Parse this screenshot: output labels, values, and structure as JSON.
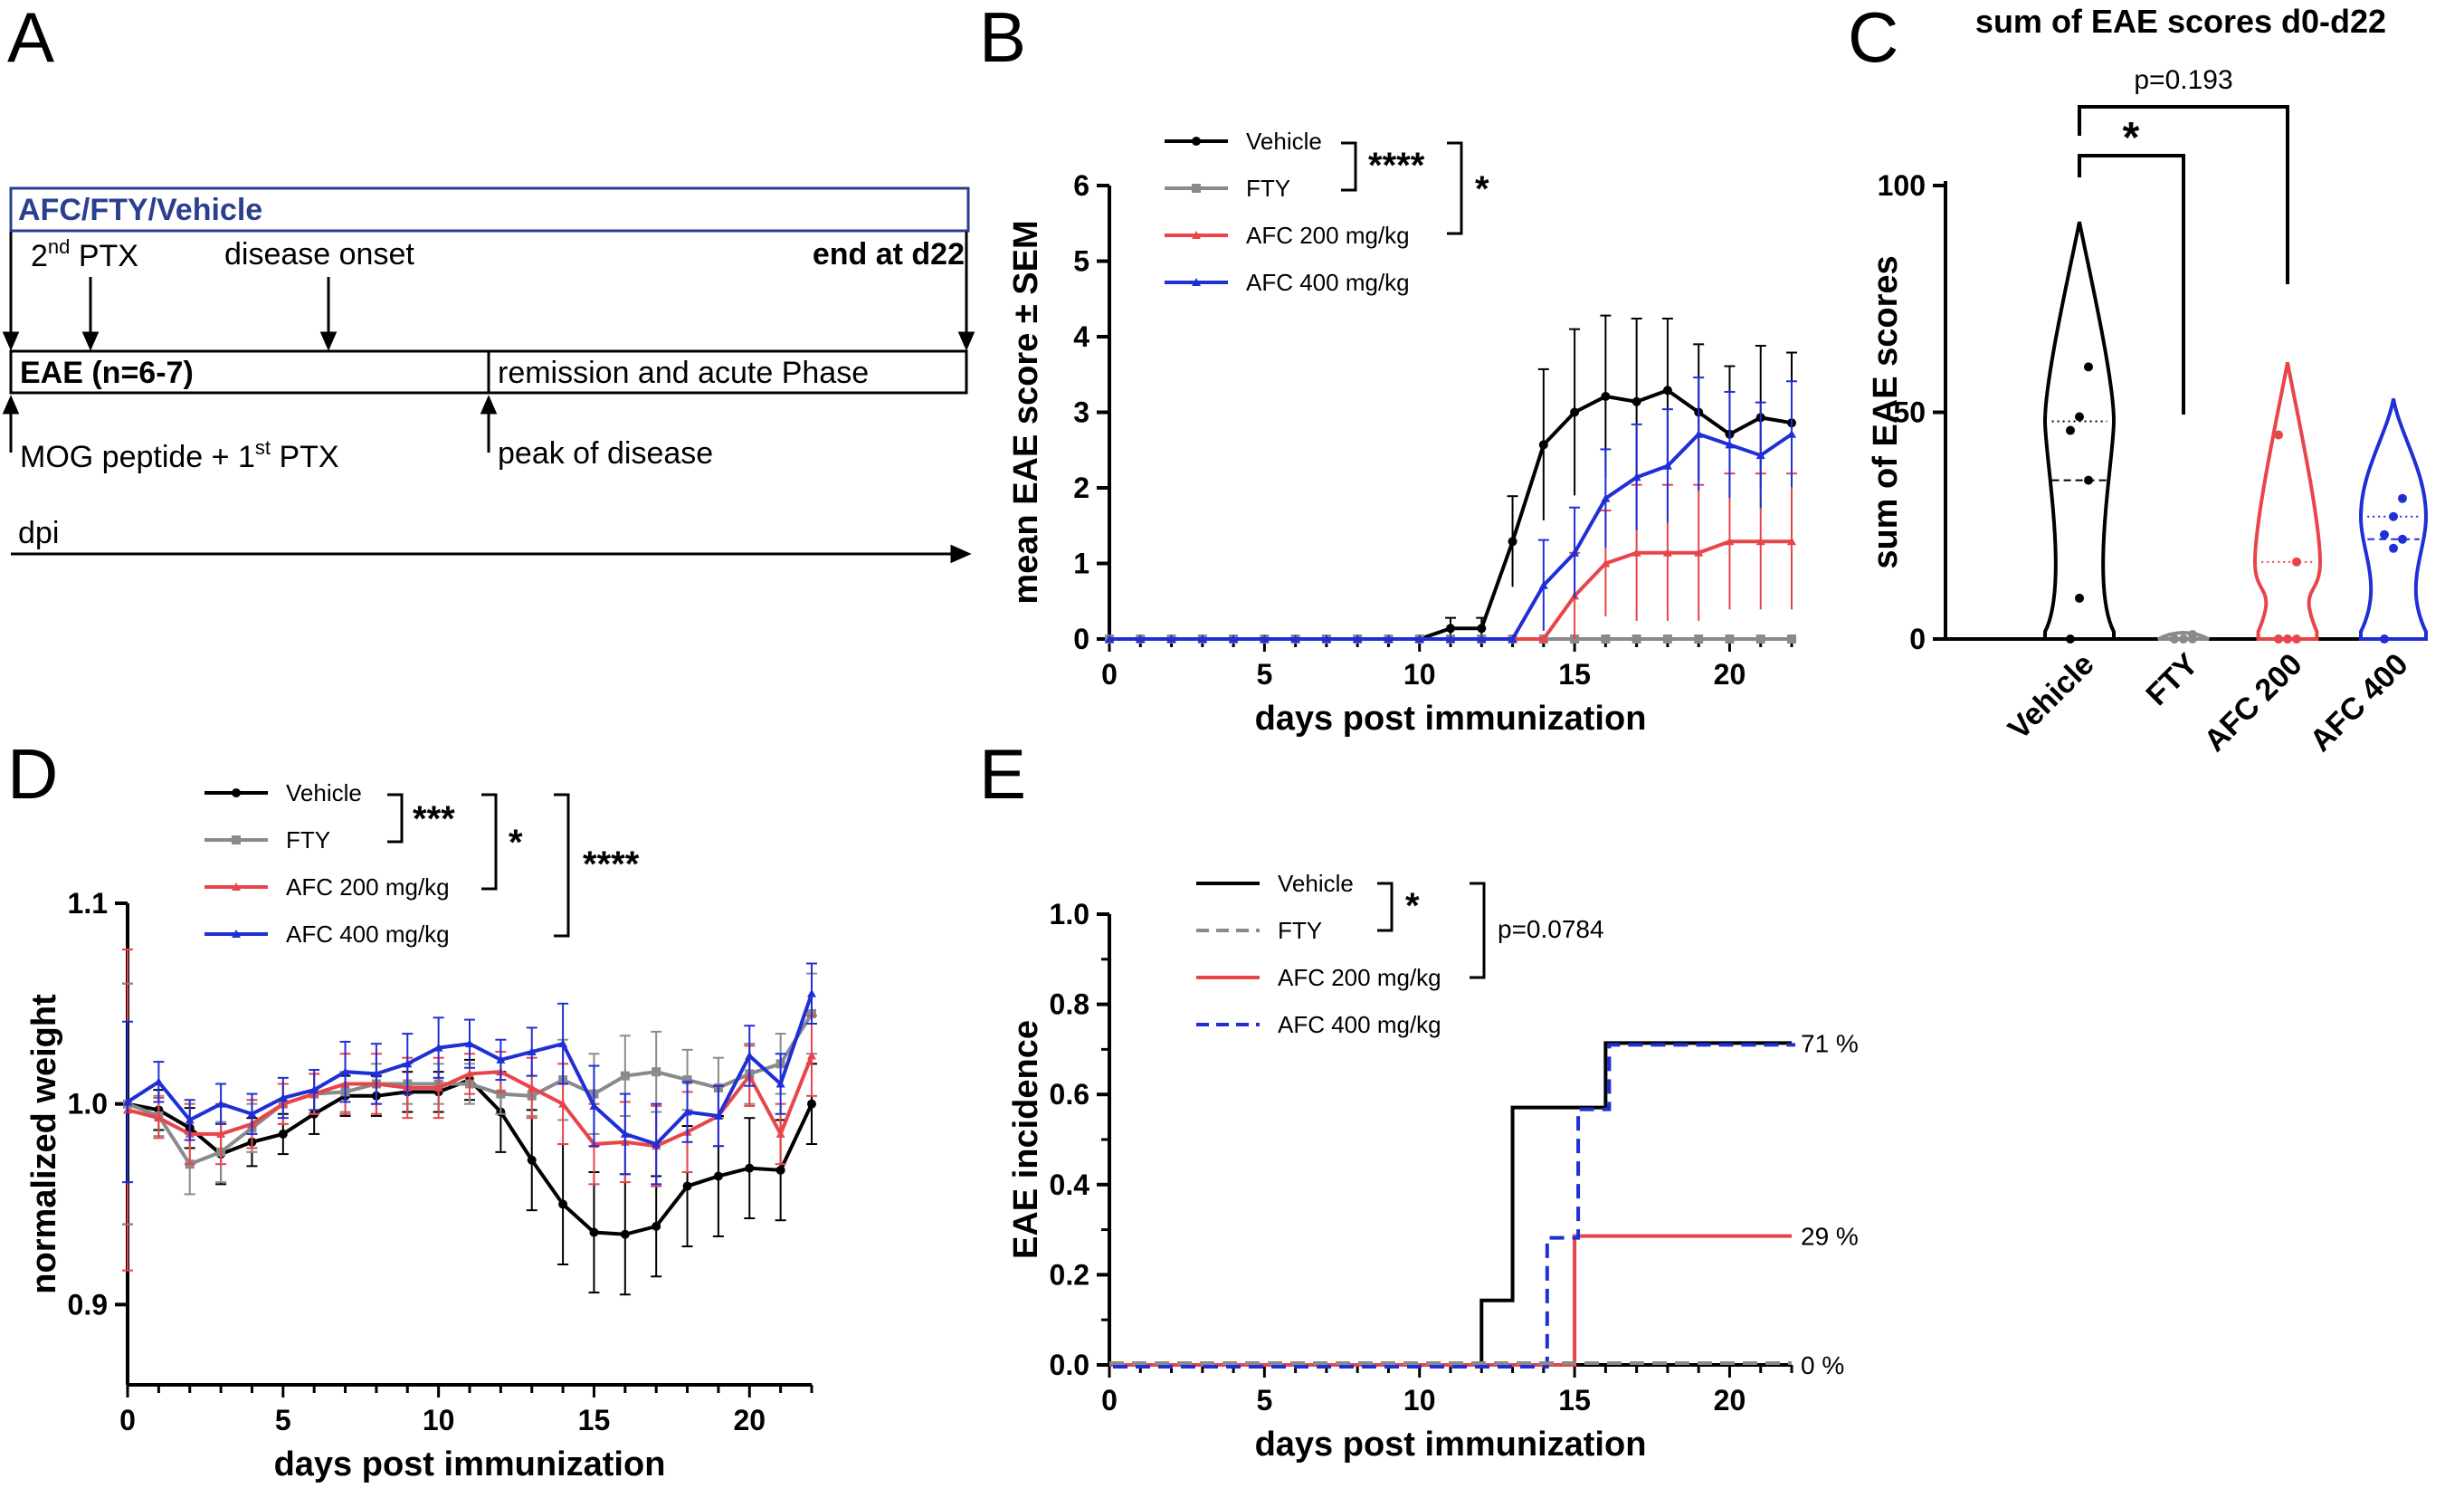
{
  "figure": {
    "panels": [
      "A",
      "B",
      "C",
      "D",
      "E"
    ]
  },
  "timeline": {
    "treatment_bar": "AFC/FTY/Vehicle",
    "treatment_color": "#2a3f8f",
    "ptx2_base": "2",
    "ptx2_sup": "nd",
    "ptx2_rest": " PTX",
    "onset": "disease onset",
    "end": "end at d22",
    "eae_box": "EAE (n=6-7)",
    "remission_box": "remission and acute Phase",
    "mog_text": "MOG peptide + 1",
    "mog_sup": "st",
    "mog_rest": " PTX",
    "peak": "peak of disease",
    "dpi": "dpi"
  },
  "colors": {
    "Vehicle": "#000000",
    "FTY": "#8a8a8a",
    "AFC 200 mg/kg": "#e8454a",
    "AFC 400 mg/kg": "#1f2fd6"
  },
  "chart_data": [
    {
      "panel": "B",
      "type": "line",
      "title": "",
      "xlabel": "days post immunization",
      "ylabel": "mean EAE score ± SEM",
      "xlim": [
        0,
        22
      ],
      "ylim": [
        0,
        6
      ],
      "xticks": [
        0,
        5,
        10,
        15,
        20
      ],
      "yticks": [
        0,
        1,
        2,
        3,
        4,
        5,
        6
      ],
      "x": [
        0,
        1,
        2,
        3,
        4,
        5,
        6,
        7,
        8,
        9,
        10,
        11,
        12,
        13,
        14,
        15,
        16,
        17,
        18,
        19,
        20,
        21,
        22
      ],
      "series": [
        {
          "name": "Vehicle",
          "color": "#000000",
          "values": [
            0,
            0,
            0,
            0,
            0,
            0,
            0,
            0,
            0,
            0,
            0,
            0.14,
            0.14,
            1.29,
            2.57,
            3.0,
            3.21,
            3.14,
            3.29,
            3.0,
            2.71,
            2.93,
            2.86
          ],
          "sem": [
            0,
            0,
            0,
            0,
            0,
            0,
            0,
            0,
            0,
            0,
            0,
            0.14,
            0.14,
            0.6,
            1.0,
            1.1,
            1.07,
            1.1,
            0.95,
            0.9,
            0.9,
            0.95,
            0.93
          ]
        },
        {
          "name": "FTY",
          "color": "#8a8a8a",
          "values": [
            0,
            0,
            0,
            0,
            0,
            0,
            0,
            0,
            0,
            0,
            0,
            0,
            0,
            0,
            0,
            0,
            0,
            0,
            0,
            0,
            0,
            0,
            0
          ],
          "sem": [
            0,
            0,
            0,
            0,
            0,
            0,
            0,
            0,
            0,
            0,
            0,
            0,
            0,
            0,
            0,
            0,
            0,
            0,
            0,
            0,
            0,
            0,
            0
          ]
        },
        {
          "name": "AFC 200 mg/kg",
          "color": "#e8454a",
          "values": [
            0,
            0,
            0,
            0,
            0,
            0,
            0,
            0,
            0,
            0,
            0,
            0,
            0,
            0,
            0,
            0.57,
            1.0,
            1.14,
            1.14,
            1.14,
            1.29,
            1.29,
            1.29
          ],
          "sem": [
            0,
            0,
            0,
            0,
            0,
            0,
            0,
            0,
            0,
            0,
            0,
            0,
            0,
            0,
            0,
            0.57,
            0.7,
            0.9,
            0.9,
            0.9,
            0.9,
            0.9,
            0.9
          ]
        },
        {
          "name": "AFC 400 mg/kg",
          "color": "#1f2fd6",
          "values": [
            0,
            0,
            0,
            0,
            0,
            0,
            0,
            0,
            0,
            0,
            0,
            0,
            0,
            0,
            0.71,
            1.14,
            1.86,
            2.14,
            2.29,
            2.71,
            2.57,
            2.43,
            2.71
          ],
          "sem": [
            0,
            0,
            0,
            0,
            0,
            0,
            0,
            0,
            0,
            0,
            0,
            0,
            0,
            0,
            0.6,
            0.6,
            0.65,
            0.7,
            0.75,
            0.75,
            0.7,
            0.7,
            0.7
          ]
        }
      ],
      "legend": [
        "Vehicle",
        "FTY",
        "AFC 200 mg/kg",
        "AFC 400 mg/kg"
      ],
      "significance": [
        {
          "label": "****",
          "between": [
            "Vehicle",
            "FTY"
          ]
        },
        {
          "label": "*",
          "between": [
            "Vehicle+FTY",
            "AFC 200 mg/kg"
          ]
        }
      ]
    },
    {
      "panel": "C",
      "type": "violin",
      "title": "sum of EAE scores d0-d22",
      "xlabel": "",
      "ylabel": "sum of EAE scores",
      "ylim": [
        0,
        100
      ],
      "yticks": [
        0,
        50,
        100
      ],
      "categories": [
        "Vehicle",
        "FTY",
        "AFC 200",
        "AFC 400"
      ],
      "series": [
        {
          "name": "Vehicle",
          "color": "#000000",
          "points": [
            0,
            9,
            35,
            46,
            49,
            60
          ],
          "median": 35,
          "q1": 8,
          "q3": 48,
          "min": 0,
          "max": 92
        },
        {
          "name": "FTY",
          "color": "#8a8a8a",
          "points": [
            0,
            0,
            0,
            0,
            0,
            1
          ],
          "median": 0,
          "q1": 0,
          "q3": 0,
          "min": 0,
          "max": 2
        },
        {
          "name": "AFC 200",
          "color": "#e8454a",
          "points": [
            0,
            0,
            0,
            0,
            0,
            17,
            45
          ],
          "median": 0,
          "q1": 0,
          "q3": 17,
          "min": 0,
          "max": 61
        },
        {
          "name": "AFC 400",
          "color": "#1f2fd6",
          "points": [
            0,
            20,
            22,
            23,
            27,
            31
          ],
          "median": 22,
          "q1": 20,
          "q3": 27,
          "min": 0,
          "max": 53
        }
      ],
      "significance": [
        {
          "label": "*",
          "between": [
            "Vehicle",
            "FTY"
          ]
        },
        {
          "label": "p=0.193",
          "between": [
            "Vehicle",
            "AFC 200"
          ]
        }
      ]
    },
    {
      "panel": "D",
      "type": "line",
      "title": "",
      "xlabel": "days post immunization",
      "ylabel": "normalized weight",
      "xlim": [
        0,
        22
      ],
      "ylim": [
        0.86,
        1.1
      ],
      "xticks": [
        0,
        5,
        10,
        15,
        20
      ],
      "yticks": [
        0.9,
        1.0,
        1.1
      ],
      "x": [
        0,
        1,
        2,
        3,
        4,
        5,
        6,
        7,
        8,
        9,
        10,
        11,
        12,
        13,
        14,
        15,
        16,
        17,
        18,
        19,
        20,
        21,
        22
      ],
      "series": [
        {
          "name": "Vehicle",
          "color": "#000000",
          "values": [
            1.0,
            0.997,
            0.988,
            0.975,
            0.981,
            0.985,
            0.995,
            1.004,
            1.004,
            1.006,
            1.006,
            1.012,
            0.996,
            0.972,
            0.95,
            0.936,
            0.935,
            0.939,
            0.959,
            0.964,
            0.968,
            0.967,
            1.0
          ],
          "sem": [
            0.06,
            0.01,
            0.01,
            0.015,
            0.012,
            0.01,
            0.01,
            0.01,
            0.01,
            0.01,
            0.01,
            0.01,
            0.02,
            0.025,
            0.03,
            0.03,
            0.03,
            0.025,
            0.03,
            0.03,
            0.025,
            0.025,
            0.02
          ]
        },
        {
          "name": "FTY",
          "color": "#8a8a8a",
          "values": [
            1.0,
            0.994,
            0.97,
            0.976,
            0.988,
            1.0,
            1.005,
            1.006,
            1.01,
            1.01,
            1.01,
            1.01,
            1.005,
            1.004,
            1.012,
            1.005,
            1.014,
            1.016,
            1.012,
            1.008,
            1.015,
            1.02,
            1.045
          ],
          "sem": [
            0.06,
            0.01,
            0.015,
            0.015,
            0.012,
            0.01,
            0.01,
            0.01,
            0.01,
            0.01,
            0.01,
            0.01,
            0.01,
            0.01,
            0.02,
            0.02,
            0.02,
            0.02,
            0.015,
            0.015,
            0.015,
            0.015,
            0.02
          ]
        },
        {
          "name": "AFC 200 mg/kg",
          "color": "#e8454a",
          "values": [
            0.997,
            0.993,
            0.985,
            0.985,
            0.99,
            1.0,
            1.005,
            1.01,
            1.01,
            1.008,
            1.008,
            1.015,
            1.016,
            1.008,
            1.0,
            0.98,
            0.981,
            0.979,
            0.986,
            0.994,
            1.014,
            0.985,
            1.024
          ],
          "sem": [
            0.08,
            0.01,
            0.015,
            0.015,
            0.012,
            0.01,
            0.01,
            0.015,
            0.015,
            0.015,
            0.015,
            0.01,
            0.01,
            0.015,
            0.02,
            0.02,
            0.02,
            0.02,
            0.02,
            0.015,
            0.015,
            0.015,
            0.02
          ]
        },
        {
          "name": "AFC 400 mg/kg",
          "color": "#1f2fd6",
          "values": [
            1.001,
            1.011,
            0.992,
            1.0,
            0.995,
            1.003,
            1.007,
            1.016,
            1.015,
            1.02,
            1.028,
            1.03,
            1.022,
            1.026,
            1.03,
            0.999,
            0.985,
            0.98,
            0.996,
            0.994,
            1.024,
            1.01,
            1.055
          ],
          "sem": [
            0.04,
            0.01,
            0.01,
            0.01,
            0.01,
            0.01,
            0.01,
            0.015,
            0.015,
            0.015,
            0.015,
            0.012,
            0.01,
            0.012,
            0.02,
            0.02,
            0.02,
            0.02,
            0.015,
            0.015,
            0.015,
            0.015,
            0.015
          ]
        }
      ],
      "legend": [
        "Vehicle",
        "FTY",
        "AFC 200 mg/kg",
        "AFC 400 mg/kg"
      ],
      "significance": [
        {
          "label": "***",
          "between": [
            "Vehicle",
            "FTY"
          ]
        },
        {
          "label": "*",
          "between": [
            "Vehicle+FTY",
            "AFC 200 mg/kg"
          ]
        },
        {
          "label": "****",
          "between": [
            "Vehicle+FTY+AFC 200",
            "AFC 400 mg/kg"
          ]
        }
      ]
    },
    {
      "panel": "E",
      "type": "step",
      "title": "",
      "xlabel": "days post immunization",
      "ylabel": "EAE incidence",
      "xlim": [
        0,
        22
      ],
      "ylim": [
        0,
        1.0
      ],
      "xticks": [
        0,
        5,
        10,
        15,
        20
      ],
      "yticks": [
        0.0,
        0.2,
        0.4,
        0.6,
        0.8,
        1.0
      ],
      "series": [
        {
          "name": "Vehicle",
          "color": "#000000",
          "dash": "solid",
          "steps": [
            [
              0,
              0.0
            ],
            [
              12,
              0.143
            ],
            [
              13,
              0.571
            ],
            [
              16,
              0.714
            ],
            [
              22,
              0.714
            ]
          ],
          "end_label": "71 %"
        },
        {
          "name": "FTY",
          "color": "#8a8a8a",
          "dash": "dashed",
          "steps": [
            [
              0,
              0.0
            ],
            [
              22,
              0.0
            ]
          ],
          "end_label": "0 %"
        },
        {
          "name": "AFC 200 mg/kg",
          "color": "#e8454a",
          "dash": "solid",
          "steps": [
            [
              0,
              0.0
            ],
            [
              15,
              0.286
            ],
            [
              22,
              0.286
            ]
          ],
          "end_label": "29 %"
        },
        {
          "name": "AFC 400 mg/kg",
          "color": "#1f2fd6",
          "dash": "dashed",
          "steps": [
            [
              0,
              0.0
            ],
            [
              14,
              0.286
            ],
            [
              15,
              0.571
            ],
            [
              16,
              0.714
            ],
            [
              22,
              0.714
            ]
          ],
          "end_label": ""
        }
      ],
      "legend": [
        "Vehicle",
        "FTY",
        "AFC 200 mg/kg",
        "AFC 400 mg/kg"
      ],
      "significance": [
        {
          "label": "*",
          "between": [
            "Vehicle",
            "FTY"
          ]
        },
        {
          "label": "p=0.0784",
          "between": [
            "Vehicle+FTY",
            "AFC 200 mg/kg"
          ]
        }
      ]
    }
  ]
}
